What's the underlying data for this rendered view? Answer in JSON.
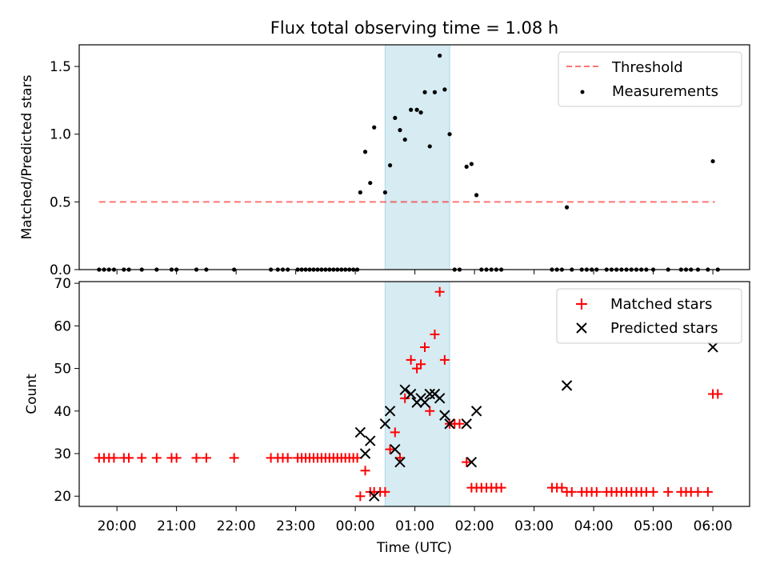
{
  "chart_data": {
    "title": "Flux total observing time = 1.08 h",
    "xlabel": "Time (UTC)",
    "x_ticks": [
      "20:00",
      "21:00",
      "22:00",
      "23:00",
      "00:00",
      "01:00",
      "02:00",
      "03:00",
      "04:00",
      "05:00",
      "06:00"
    ],
    "x_range": [
      "19:22",
      "06:37"
    ],
    "highlight_span": {
      "start": "00:30",
      "end": "01:35",
      "color": "#add8e6"
    },
    "panels": [
      {
        "type": "scatter",
        "ylabel": "Matched/Predicted stars",
        "ylim": [
          0,
          1.66
        ],
        "y_ticks": [
          0.0,
          0.5,
          1.0,
          1.5
        ],
        "legend_placement": "top-right",
        "legend": [
          "Threshold",
          "Measurements"
        ],
        "series": [
          {
            "name": "Threshold",
            "kind": "line",
            "style": "dashed",
            "color": "#ff0000",
            "opacity": 0.55,
            "y": 0.5,
            "x_range": [
              "19:42",
              "06:02"
            ]
          },
          {
            "name": "Measurements",
            "kind": "points",
            "color": "#000000",
            "points": [
              [
                "19:42",
                0.0
              ],
              [
                "19:47",
                0.0
              ],
              [
                "19:52",
                0.0
              ],
              [
                "19:57",
                0.0
              ],
              [
                "20:07",
                0.0
              ],
              [
                "20:12",
                0.0
              ],
              [
                "20:25",
                0.0
              ],
              [
                "20:40",
                0.0
              ],
              [
                "20:55",
                0.0
              ],
              [
                "21:00",
                0.0
              ],
              [
                "21:20",
                0.0
              ],
              [
                "21:30",
                0.0
              ],
              [
                "21:58",
                0.0
              ],
              [
                "22:35",
                0.0
              ],
              [
                "22:42",
                0.0
              ],
              [
                "22:47",
                0.0
              ],
              [
                "22:52",
                0.0
              ],
              [
                "23:02",
                0.0
              ],
              [
                "23:06",
                0.0
              ],
              [
                "23:10",
                0.0
              ],
              [
                "23:14",
                0.0
              ],
              [
                "23:18",
                0.0
              ],
              [
                "23:22",
                0.0
              ],
              [
                "23:26",
                0.0
              ],
              [
                "23:30",
                0.0
              ],
              [
                "23:34",
                0.0
              ],
              [
                "23:38",
                0.0
              ],
              [
                "23:42",
                0.0
              ],
              [
                "23:46",
                0.0
              ],
              [
                "23:50",
                0.0
              ],
              [
                "23:54",
                0.0
              ],
              [
                "23:58",
                0.0
              ],
              [
                "00:02",
                0.0
              ],
              [
                "00:05",
                0.57
              ],
              [
                "00:10",
                0.87
              ],
              [
                "00:15",
                0.64
              ],
              [
                "00:19",
                1.05
              ],
              [
                "00:30",
                0.57
              ],
              [
                "00:35",
                0.77
              ],
              [
                "00:40",
                1.12
              ],
              [
                "00:45",
                1.03
              ],
              [
                "00:50",
                0.96
              ],
              [
                "00:56",
                1.18
              ],
              [
                "01:02",
                1.18
              ],
              [
                "01:06",
                1.16
              ],
              [
                "01:10",
                1.31
              ],
              [
                "01:15",
                0.91
              ],
              [
                "01:20",
                1.31
              ],
              [
                "01:25",
                1.58
              ],
              [
                "01:30",
                1.33
              ],
              [
                "01:35",
                1.0
              ],
              [
                "01:40",
                0.0
              ],
              [
                "01:45",
                0.0
              ],
              [
                "01:52",
                0.76
              ],
              [
                "01:57",
                0.78
              ],
              [
                "02:02",
                0.55
              ],
              [
                "02:07",
                0.0
              ],
              [
                "02:12",
                0.0
              ],
              [
                "02:17",
                0.0
              ],
              [
                "02:22",
                0.0
              ],
              [
                "02:27",
                0.0
              ],
              [
                "03:18",
                0.0
              ],
              [
                "03:23",
                0.0
              ],
              [
                "03:28",
                0.0
              ],
              [
                "03:33",
                0.46
              ],
              [
                "03:38",
                0.0
              ],
              [
                "03:48",
                0.0
              ],
              [
                "03:53",
                0.0
              ],
              [
                "03:58",
                0.0
              ],
              [
                "04:03",
                0.0
              ],
              [
                "04:13",
                0.0
              ],
              [
                "04:18",
                0.0
              ],
              [
                "04:23",
                0.0
              ],
              [
                "04:28",
                0.0
              ],
              [
                "04:33",
                0.0
              ],
              [
                "04:38",
                0.0
              ],
              [
                "04:43",
                0.0
              ],
              [
                "04:48",
                0.0
              ],
              [
                "04:53",
                0.0
              ],
              [
                "05:00",
                0.0
              ],
              [
                "05:15",
                0.0
              ],
              [
                "05:28",
                0.0
              ],
              [
                "05:33",
                0.0
              ],
              [
                "05:38",
                0.0
              ],
              [
                "05:45",
                0.0
              ],
              [
                "05:55",
                0.0
              ],
              [
                "06:00",
                0.8
              ],
              [
                "06:05",
                0.0
              ]
            ]
          }
        ]
      },
      {
        "type": "scatter",
        "ylabel": "Count",
        "ylim": [
          17.6,
          70.4
        ],
        "y_ticks": [
          20,
          30,
          40,
          50,
          60,
          70
        ],
        "legend_placement": "top-right",
        "legend": [
          "Matched stars",
          "Predicted stars"
        ],
        "series": [
          {
            "name": "Matched stars",
            "marker": "+",
            "color": "#ff0000",
            "points": [
              [
                "19:42",
                29
              ],
              [
                "19:47",
                29
              ],
              [
                "19:52",
                29
              ],
              [
                "19:57",
                29
              ],
              [
                "20:07",
                29
              ],
              [
                "20:12",
                29
              ],
              [
                "20:25",
                29
              ],
              [
                "20:40",
                29
              ],
              [
                "20:55",
                29
              ],
              [
                "21:00",
                29
              ],
              [
                "21:20",
                29
              ],
              [
                "21:30",
                29
              ],
              [
                "21:58",
                29
              ],
              [
                "22:35",
                29
              ],
              [
                "22:42",
                29
              ],
              [
                "22:47",
                29
              ],
              [
                "22:52",
                29
              ],
              [
                "23:02",
                29
              ],
              [
                "23:06",
                29
              ],
              [
                "23:10",
                29
              ],
              [
                "23:14",
                29
              ],
              [
                "23:18",
                29
              ],
              [
                "23:22",
                29
              ],
              [
                "23:26",
                29
              ],
              [
                "23:30",
                29
              ],
              [
                "23:34",
                29
              ],
              [
                "23:38",
                29
              ],
              [
                "23:42",
                29
              ],
              [
                "23:46",
                29
              ],
              [
                "23:50",
                29
              ],
              [
                "23:54",
                29
              ],
              [
                "23:58",
                29
              ],
              [
                "00:02",
                29
              ],
              [
                "00:05",
                20
              ],
              [
                "00:10",
                26
              ],
              [
                "00:15",
                21
              ],
              [
                "00:19",
                21
              ],
              [
                "00:25",
                21
              ],
              [
                "00:30",
                21
              ],
              [
                "00:35",
                31
              ],
              [
                "00:40",
                35
              ],
              [
                "00:45",
                29
              ],
              [
                "00:50",
                43
              ],
              [
                "00:56",
                52
              ],
              [
                "01:02",
                50
              ],
              [
                "01:06",
                51
              ],
              [
                "01:10",
                55
              ],
              [
                "01:15",
                40
              ],
              [
                "01:20",
                58
              ],
              [
                "01:25",
                68
              ],
              [
                "01:30",
                52
              ],
              [
                "01:35",
                37
              ],
              [
                "01:40",
                37
              ],
              [
                "01:45",
                37
              ],
              [
                "01:52",
                28
              ],
              [
                "01:57",
                22
              ],
              [
                "02:02",
                22
              ],
              [
                "02:07",
                22
              ],
              [
                "02:12",
                22
              ],
              [
                "02:17",
                22
              ],
              [
                "02:22",
                22
              ],
              [
                "02:27",
                22
              ],
              [
                "03:18",
                22
              ],
              [
                "03:23",
                22
              ],
              [
                "03:28",
                22
              ],
              [
                "03:33",
                21
              ],
              [
                "03:38",
                21
              ],
              [
                "03:48",
                21
              ],
              [
                "03:53",
                21
              ],
              [
                "03:58",
                21
              ],
              [
                "04:03",
                21
              ],
              [
                "04:13",
                21
              ],
              [
                "04:18",
                21
              ],
              [
                "04:23",
                21
              ],
              [
                "04:28",
                21
              ],
              [
                "04:33",
                21
              ],
              [
                "04:38",
                21
              ],
              [
                "04:43",
                21
              ],
              [
                "04:48",
                21
              ],
              [
                "04:53",
                21
              ],
              [
                "05:00",
                21
              ],
              [
                "05:15",
                21
              ],
              [
                "05:28",
                21
              ],
              [
                "05:33",
                21
              ],
              [
                "05:38",
                21
              ],
              [
                "05:45",
                21
              ],
              [
                "05:55",
                21
              ],
              [
                "06:00",
                44
              ],
              [
                "06:05",
                44
              ]
            ]
          },
          {
            "name": "Predicted stars",
            "marker": "x",
            "color": "#000000",
            "points": [
              [
                "00:05",
                35
              ],
              [
                "00:10",
                30
              ],
              [
                "00:15",
                33
              ],
              [
                "00:19",
                20
              ],
              [
                "00:30",
                37
              ],
              [
                "00:35",
                40
              ],
              [
                "00:40",
                31
              ],
              [
                "00:45",
                28
              ],
              [
                "00:50",
                45
              ],
              [
                "00:56",
                44
              ],
              [
                "01:02",
                42
              ],
              [
                "01:06",
                43
              ],
              [
                "01:10",
                42
              ],
              [
                "01:15",
                44
              ],
              [
                "01:20",
                44
              ],
              [
                "01:25",
                43
              ],
              [
                "01:30",
                39
              ],
              [
                "01:35",
                37
              ],
              [
                "01:52",
                37
              ],
              [
                "01:57",
                28
              ],
              [
                "02:02",
                40
              ],
              [
                "03:33",
                46
              ],
              [
                "06:00",
                55
              ]
            ]
          }
        ]
      }
    ]
  }
}
